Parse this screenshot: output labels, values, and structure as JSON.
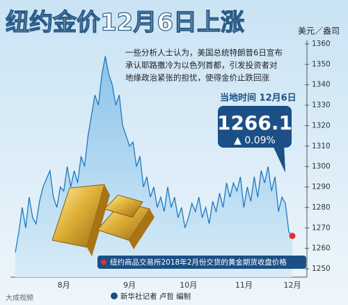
{
  "chart_data": {
    "type": "area",
    "title": "纽约金价12月6日上涨",
    "unit": "美元／盎司",
    "annotation": [
      "一些分析人士认为，美国总统特朗普6日宣布",
      "承认耶路撒冷为以色列首都，引发投资者对",
      "地缘政治紧张的担忧，使得金价止跌回涨"
    ],
    "callout_header": "当地时间 12月6日",
    "callout_change": "▲ 0.09%",
    "legend_note": "纽约商品交易所2018年2月份交货的黄金期货收盘价格",
    "credit": "新华社记者 卢哲 编制",
    "watermark": "大成视频",
    "categories": [
      null,
      null,
      null,
      null,
      null,
      null,
      null,
      null,
      null,
      null,
      null,
      null,
      null,
      null,
      "8月",
      null,
      null,
      null,
      null,
      null,
      null,
      null,
      null,
      null,
      null,
      null,
      null,
      null,
      null,
      null,
      null,
      null,
      null,
      "9月",
      null,
      null,
      null,
      null,
      null,
      null,
      null,
      null,
      null,
      null,
      null,
      null,
      null,
      null,
      null,
      null,
      "10月",
      null,
      null,
      null,
      null,
      null,
      null,
      null,
      null,
      null,
      null,
      null,
      null,
      null,
      null,
      null,
      "11月",
      null,
      null,
      null,
      null,
      null,
      null,
      null,
      null,
      null,
      null,
      null,
      null,
      null,
      "12月"
    ],
    "values": [
      1258,
      1268,
      1280,
      1270,
      1285,
      1275,
      1272,
      1283,
      1290,
      1294,
      1298,
      1285,
      1280,
      1290,
      1288,
      1300,
      1290,
      1298,
      1292,
      1305,
      1300,
      1315,
      1325,
      1335,
      1330,
      1345,
      1354,
      1345,
      1340,
      1330,
      1335,
      1320,
      1315,
      1310,
      1312,
      1300,
      1305,
      1290,
      1295,
      1285,
      1290,
      1280,
      1285,
      1278,
      1290,
      1280,
      1285,
      1275,
      1280,
      1270,
      1275,
      1282,
      1278,
      1285,
      1275,
      1280,
      1272,
      1283,
      1278,
      1287,
      1280,
      1292,
      1285,
      1292,
      1288,
      1295,
      1280,
      1290,
      1283,
      1295,
      1285,
      1298,
      1292,
      1300,
      1288,
      1295,
      1278,
      1285,
      1282,
      1268,
      1266.1
    ],
    "color": "#1f78bd",
    "marker_color": "#e03030",
    "ylim": [
      1250,
      1360
    ],
    "yticks": [
      1250,
      1260,
      1270,
      1280,
      1290,
      1300,
      1310,
      1320,
      1330,
      1340,
      1350,
      1360
    ]
  }
}
